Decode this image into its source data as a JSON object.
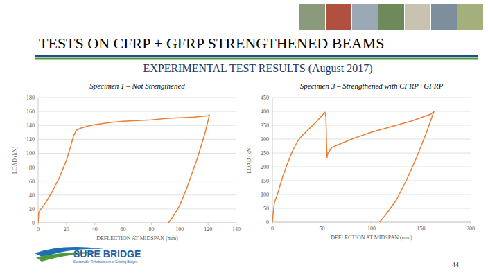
{
  "slide": {
    "title": "TESTS ON CFRP + GFRP STRENGTHENED BEAMS",
    "subtitle": "EXPERIMENTAL TEST RESULTS (August 2017)",
    "logo_name": "SURE BRIDGE",
    "logo_tagline": "Sustainable Refurbishment of Existing Bridges",
    "page_number": "44"
  },
  "chart_data": [
    {
      "type": "line",
      "title": "Specimen 1 – Not Strengthened",
      "x_label": "DEFLECTION AT MIDSPAN (mm)",
      "y_label": "LOAD (kN)",
      "color": "#ed7d31",
      "grid": true,
      "x": [
        0,
        0.5,
        2,
        5,
        10,
        15,
        20,
        23,
        25,
        27,
        30,
        35,
        40,
        50,
        60,
        70,
        80,
        85,
        90,
        100,
        110,
        120,
        121,
        118,
        112,
        105,
        100,
        95,
        92
      ],
      "values": [
        0,
        15,
        20,
        28,
        45,
        65,
        90,
        110,
        125,
        133,
        136,
        139,
        141,
        144,
        146,
        147,
        148,
        149,
        150,
        151,
        152,
        154,
        155,
        130,
        90,
        50,
        25,
        8,
        0
      ],
      "xlim": [
        0,
        140
      ],
      "ylim": [
        0,
        180
      ],
      "xticks": [
        0,
        20,
        40,
        60,
        80,
        100,
        120,
        140
      ],
      "yticks": [
        0,
        20,
        40,
        60,
        80,
        100,
        120,
        140,
        160,
        180
      ]
    },
    {
      "type": "line",
      "title": "Specimen 3 – Strengthened with CFRP+GFRP",
      "x_label": "DEFLECTION AT MIDSPAN (mm)",
      "y_label": "LOAD (kN)",
      "color": "#ed7d31",
      "grid": true,
      "x": [
        0,
        1,
        2,
        5,
        10,
        15,
        20,
        25,
        28,
        35,
        45,
        53,
        54,
        55,
        56,
        60,
        70,
        80,
        100,
        120,
        140,
        160,
        163,
        155,
        145,
        135,
        125,
        115,
        108
      ],
      "values": [
        0,
        40,
        70,
        100,
        160,
        210,
        255,
        290,
        305,
        330,
        365,
        397,
        380,
        232,
        250,
        270,
        285,
        300,
        325,
        345,
        365,
        390,
        400,
        320,
        230,
        150,
        80,
        30,
        0
      ],
      "xlim": [
        0,
        200
      ],
      "ylim": [
        0,
        450
      ],
      "xticks": [
        0,
        50,
        100,
        150,
        200
      ],
      "yticks": [
        0,
        50,
        100,
        150,
        200,
        250,
        300,
        350,
        400,
        450
      ]
    }
  ]
}
